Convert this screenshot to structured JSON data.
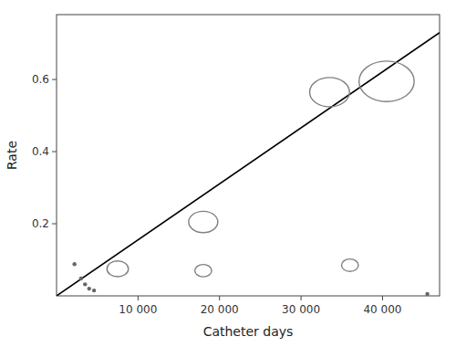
{
  "chart_data": {
    "type": "scatter",
    "xlabel": "Catheter days",
    "ylabel": "Rate",
    "xlim": [
      0,
      47000
    ],
    "ylim": [
      0.0,
      0.78
    ],
    "xticks": [
      {
        "value": 10000,
        "label": "10 000"
      },
      {
        "value": 20000,
        "label": "20 000"
      },
      {
        "value": 30000,
        "label": "30 000"
      },
      {
        "value": 40000,
        "label": "40 000"
      }
    ],
    "yticks": [
      0.2,
      0.4,
      0.6
    ],
    "grid": false,
    "series": [
      {
        "type": "line",
        "color": "#000000",
        "x": [
          0,
          47000
        ],
        "values": [
          0.0,
          0.73
        ]
      },
      {
        "type": "scatter",
        "color": "#666666",
        "x": [
          2200,
          3000,
          3500,
          4000,
          4600,
          45500
        ],
        "values": [
          0.088,
          0.048,
          0.032,
          0.02,
          0.015,
          0.005
        ]
      },
      {
        "type": "bubble",
        "color": "#808080",
        "x": [
          7500,
          18000,
          18000,
          33500,
          40500,
          36000
        ],
        "values": [
          0.075,
          0.205,
          0.07,
          0.565,
          0.595,
          0.085
        ],
        "sizes": [
          0.028,
          0.038,
          0.022,
          0.052,
          0.072,
          0.022
        ]
      }
    ]
  }
}
